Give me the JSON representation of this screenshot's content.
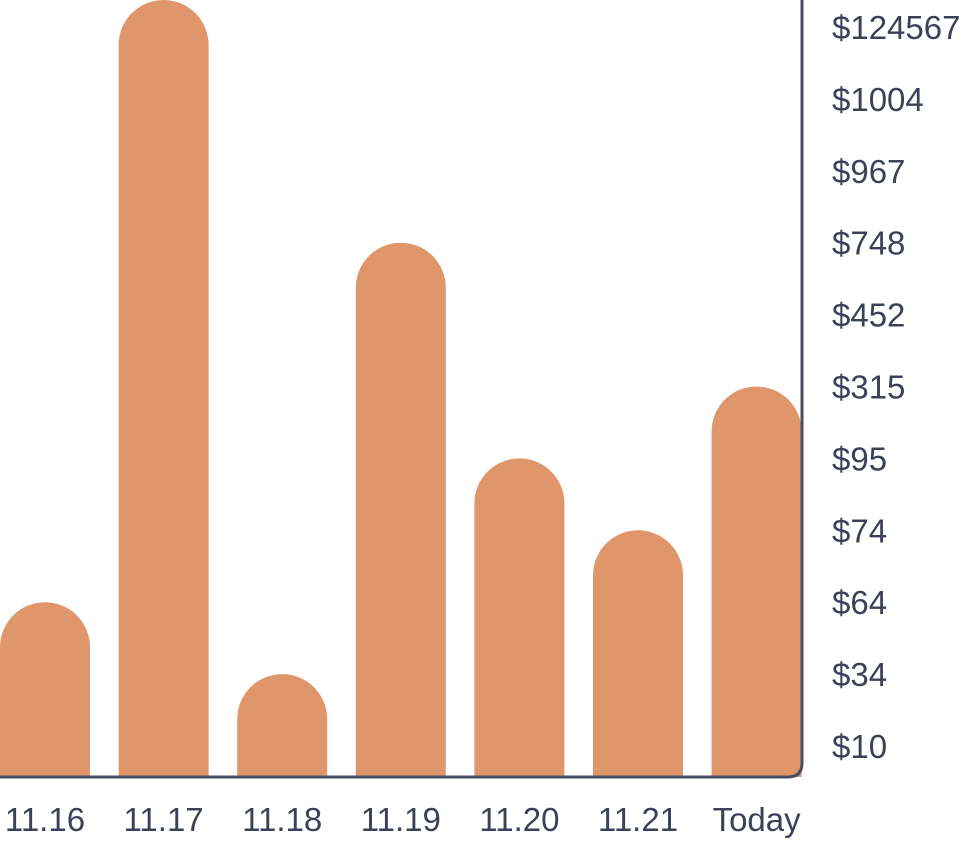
{
  "chart_data": {
    "type": "bar",
    "title": "",
    "xlabel": "",
    "ylabel": "",
    "categories": [
      "11.16",
      "11.17",
      "11.18",
      "11.19",
      "11.20",
      "11.21",
      "Today"
    ],
    "values": [
      64,
      124567,
      34,
      748,
      95,
      74,
      315
    ],
    "y_tick_labels": [
      "$124567",
      "$1004",
      "$967",
      "$748",
      "$452",
      "$315",
      "$95",
      "$74",
      "$64",
      "$34",
      "$10"
    ],
    "y_axis_position": "right",
    "y_scale": "categorical-ordinal (non-uniform tick values)",
    "grid": false,
    "legend": "none",
    "bar_color": "#e0966b",
    "axis_color": "#4a4d63",
    "text_color": "#3d4158"
  }
}
